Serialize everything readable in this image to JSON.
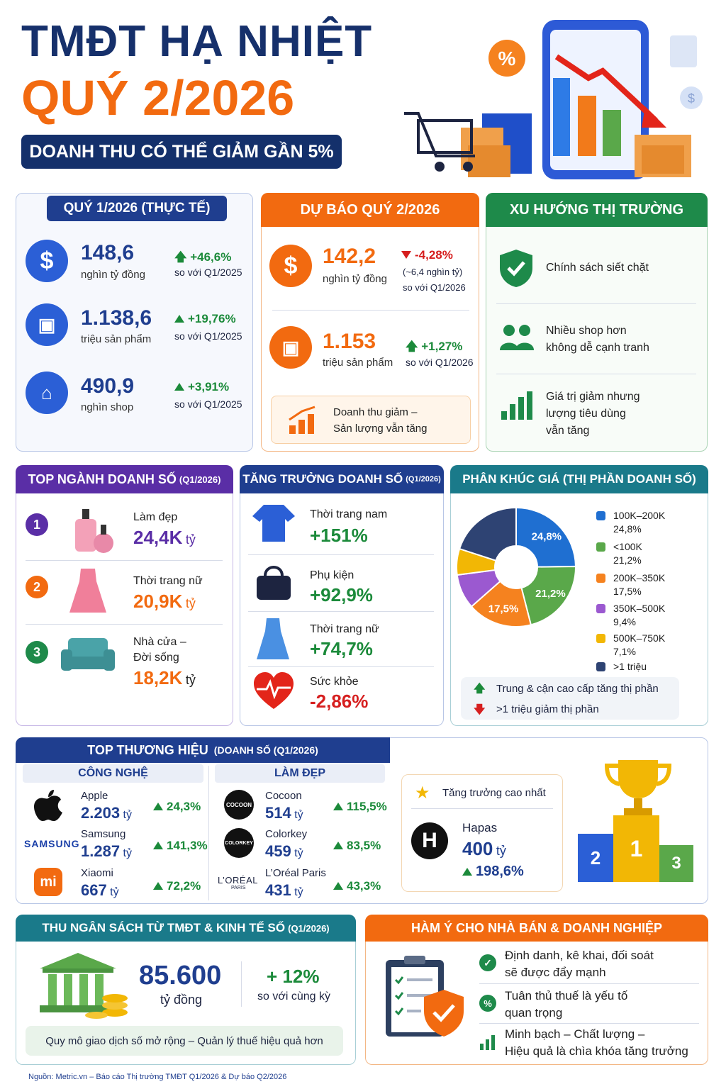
{
  "header": {
    "line1": "TMĐT  HẠ NHIỆT",
    "line2": "QUÝ 2/2026",
    "pill": "DOANH THU CÓ THỂ GIẢM GẦN 5%"
  },
  "q1": {
    "title": "QUÝ 1/2026 (THỰC TẾ)",
    "items": [
      {
        "value": "148,6",
        "unit": "nghìn tỷ đồng",
        "change": "+46,6%",
        "cmp": "so với Q1/2025"
      },
      {
        "value": "1.138,6",
        "unit": "triệu sản phẩm",
        "change": "+19,76%",
        "cmp": "so với Q1/2025"
      },
      {
        "value": "490,9",
        "unit": "nghìn shop",
        "change": "+3,91%",
        "cmp": "so với Q1/2025"
      }
    ]
  },
  "q2": {
    "title": "DỰ BÁO QUÝ 2/2026",
    "rev_value": "142,2",
    "rev_unit": "nghìn tỷ đồng",
    "rev_change": "-4,28%",
    "rev_note": "(~6,4 nghìn tỷ)",
    "rev_cmp": "so với Q1/2026",
    "prod_value": "1.153",
    "prod_unit": "triệu sản phẩm",
    "prod_change": "+1,27%",
    "prod_cmp": "so với Q1/2026",
    "note_l1": "Doanh thu giảm –",
    "note_l2": "Sản lượng vẫn tăng"
  },
  "trend": {
    "title": "XU HƯỚNG THỊ TRƯỜNG",
    "i1": "Chính sách siết chặt",
    "i2a": "Nhiều shop hơn",
    "i2b": "không dễ cạnh tranh",
    "i3a": "Giá trị giảm nhưng",
    "i3b": "lượng tiêu dùng",
    "i3c": "vẫn tăng"
  },
  "top_ind": {
    "title": "TOP NGÀNH DOANH SỐ",
    "period": "(Q1/2026)",
    "items": [
      {
        "rank": "1",
        "name": "Làm đẹp",
        "value": "24,4K",
        "unit": "tỷ"
      },
      {
        "rank": "2",
        "name": "Thời trang nữ",
        "value": "20,9K",
        "unit": "tỷ"
      },
      {
        "rank": "3",
        "name_a": "Nhà cửa –",
        "name_b": "Đời sống",
        "value": "18,2K",
        "unit": "tỷ"
      }
    ]
  },
  "growth": {
    "title": "TĂNG TRƯỞNG DOANH SỐ",
    "period": "(Q1/2026)",
    "items": [
      {
        "name": "Thời trang nam",
        "value": "+151%"
      },
      {
        "name": "Phụ kiện",
        "value": "+92,9%"
      },
      {
        "name": "Thời trang nữ",
        "value": "+74,7%"
      },
      {
        "name": "Sức khỏe",
        "value": "-2,86%"
      }
    ]
  },
  "price": {
    "title": "PHÂN KHÚC GIÁ (THỊ PHẦN DOANH SỐ)",
    "up_note": "Trung & cận cao cấp tăng thị phần",
    "down_note": ">1 triệu giảm thị phần"
  },
  "chart_data": {
    "type": "pie",
    "categories": [
      "100K–200K",
      "<100K",
      "200K–350K",
      "350K–500K",
      "500K–750K",
      ">1 triệu"
    ],
    "values": [
      24.8,
      21.2,
      17.5,
      9.4,
      7.1,
      null
    ],
    "value_labels": [
      "24,8%",
      "21,2%",
      "17,5%",
      "9,4%",
      "7,1%",
      ""
    ],
    "colors": [
      "#1f6fd1",
      "#5aa84a",
      "#f5821f",
      "#9b59d0",
      "#f2b705",
      "#2e4373"
    ]
  },
  "brands": {
    "title": "TOP THƯƠNG HIỆU",
    "period": "(DOANH SỐ (Q1/2026)",
    "tech_title": "CÔNG NGHỆ",
    "beauty_title": "LÀM ĐẸP",
    "tech": [
      {
        "name": "Apple",
        "value": "2.203",
        "unit": "tỷ",
        "change": "24,3%"
      },
      {
        "name": "Samsung",
        "value": "1.287",
        "unit": "tỷ",
        "change": "141,3%",
        "logo": "SAMSUNG"
      },
      {
        "name": "Xiaomi",
        "value": "667",
        "unit": "tỷ",
        "change": "72,2%",
        "logo": "mi"
      }
    ],
    "beauty": [
      {
        "name": "Cocoon",
        "value": "514",
        "unit": "tỷ",
        "change": "115,5%",
        "logo": "COCOON"
      },
      {
        "name": "Colorkey",
        "value": "459",
        "unit": "tỷ",
        "change": "83,5%",
        "logo": "COLORKEY"
      },
      {
        "name": "L’Oréal Paris",
        "value": "431",
        "unit": "tỷ",
        "change": "43,3%",
        "logo": "L’ORÉAL",
        "logo2": "PARIS"
      }
    ],
    "fast_title": "Tăng trưởng cao nhất",
    "fast_name": "Hapas",
    "fast_value": "400",
    "fast_unit": "tỷ",
    "fast_change": "198,6%",
    "fast_logo": "H",
    "podium": [
      "2",
      "1",
      "3"
    ]
  },
  "budget": {
    "title": "THU NGÂN SÁCH TỪ TMĐT & KINH TẾ SỐ",
    "period": "(Q1/2026)",
    "value": "85.600",
    "unit": "tỷ đồng",
    "change": "+ 12%",
    "cmp": "so với cùng kỳ",
    "note": "Quy mô giao dịch số mở rộng – Quản lý thuế hiệu quả hơn"
  },
  "impl": {
    "title": "HÀM Ý CHO NHÀ BÁN & DOANH NGHIỆP",
    "i1a": "Định danh, kê khai, đối soát",
    "i1b": "sẽ được đẩy mạnh",
    "i2a": "Tuân thủ thuế là yếu tố",
    "i2b": "quan trọng",
    "i3a": "Minh bạch – Chất lượng –",
    "i3b": "Hiệu quả là chìa khóa tăng trưởng"
  },
  "source": "Nguồn: Metric.vn – Báo cáo Thị trường TMĐT Q1/2026 & Dự báo Q2/2026"
}
